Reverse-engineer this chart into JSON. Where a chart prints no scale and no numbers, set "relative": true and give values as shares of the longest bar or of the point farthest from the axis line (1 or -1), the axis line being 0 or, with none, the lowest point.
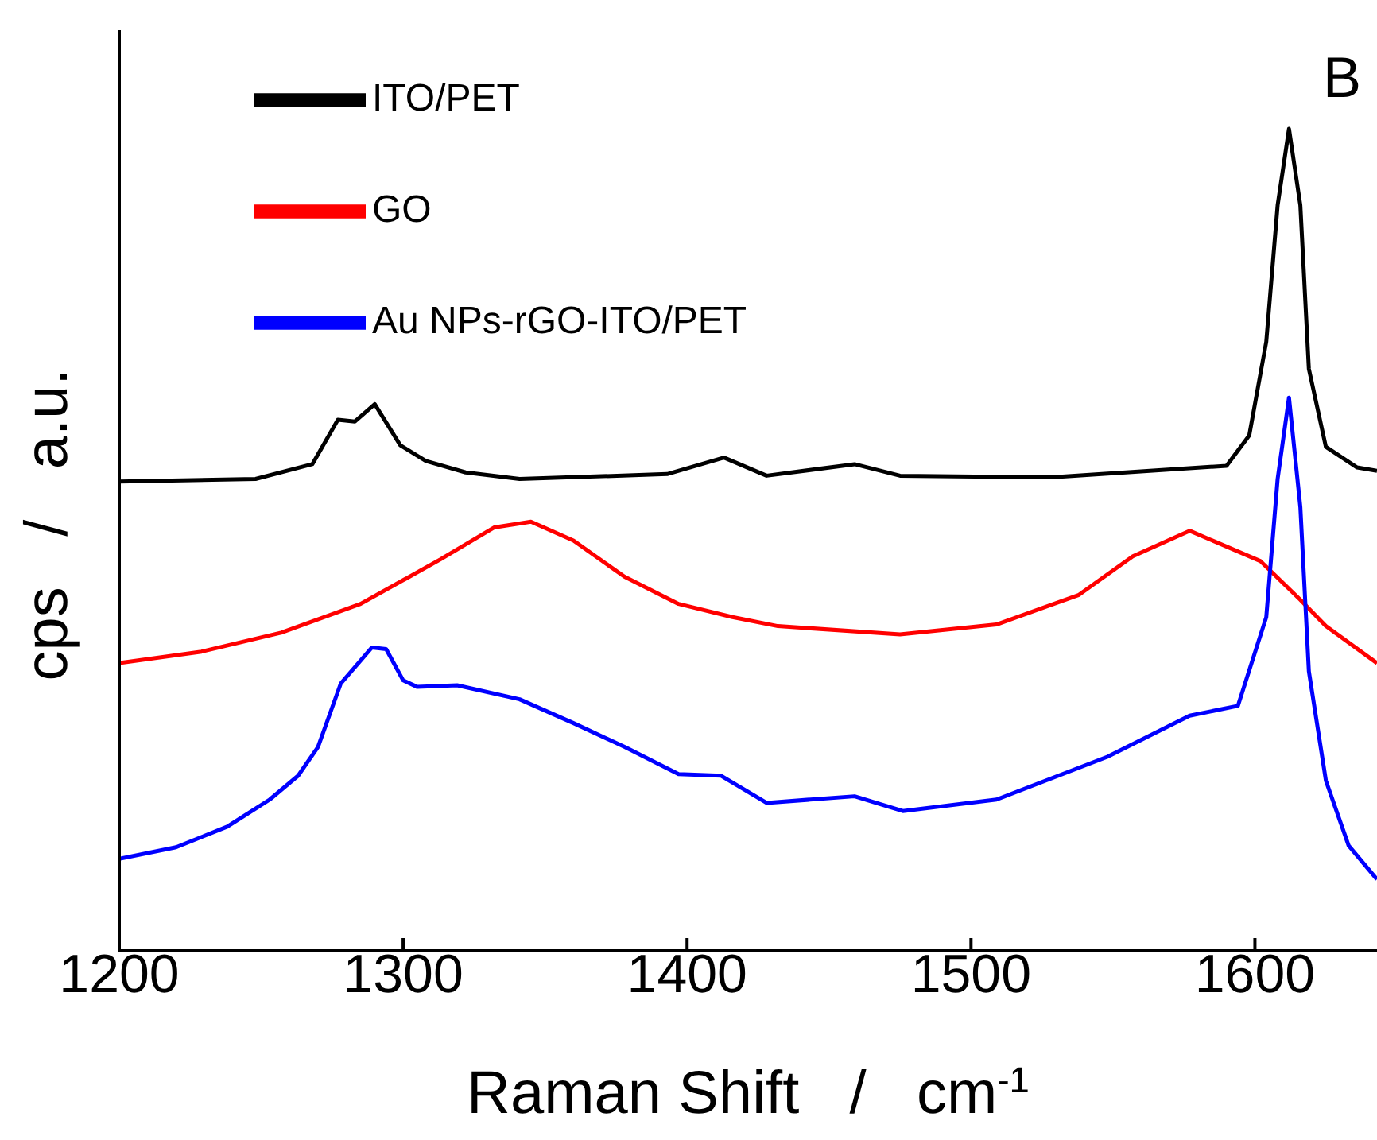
{
  "chart_data": {
    "type": "line",
    "relative": true,
    "xlabel": "Raman Shift   /   cm$^{-1}$",
    "ylabel": "cps   /   a.u.",
    "annotations": [
      "B"
    ],
    "xlim": [
      1200,
      1643
    ],
    "xticks": [
      1200,
      1300,
      1400,
      1500,
      1600
    ],
    "legend": "top left",
    "marker": "none",
    "line_style": "solid",
    "grid": false,
    "series": [
      {
        "name": "ITO/PET",
        "color": "#000000",
        "x": [
          1200,
          1248,
          1268,
          1277,
          1283,
          1290,
          1299,
          1308,
          1322,
          1341,
          1393,
          1413,
          1428,
          1459,
          1475,
          1528,
          1590,
          1598,
          1604,
          1608,
          1612,
          1616,
          1619,
          1625,
          1636,
          1643
        ],
        "values": [
          0.571,
          0.574,
          0.592,
          0.646,
          0.644,
          0.665,
          0.615,
          0.596,
          0.582,
          0.574,
          0.58,
          0.6,
          0.578,
          0.592,
          0.578,
          0.576,
          0.59,
          0.627,
          0.741,
          0.907,
          1.0,
          0.907,
          0.708,
          0.613,
          0.588,
          0.584
        ]
      },
      {
        "name": "GO",
        "color": "#ff0000",
        "x": [
          1200,
          1229,
          1257,
          1285,
          1313,
          1332,
          1345,
          1360,
          1378,
          1397,
          1416,
          1432,
          1475,
          1509,
          1538,
          1557,
          1577,
          1602,
          1616,
          1625,
          1643
        ],
        "values": [
          0.35,
          0.364,
          0.387,
          0.422,
          0.476,
          0.515,
          0.522,
          0.499,
          0.455,
          0.422,
          0.406,
          0.395,
          0.385,
          0.397,
          0.433,
          0.48,
          0.511,
          0.474,
          0.427,
          0.395,
          0.35
        ]
      },
      {
        "name": "Au NPs-rGO-ITO/PET",
        "color": "#0000ff",
        "x": [
          1200,
          1220,
          1238,
          1253,
          1263,
          1270,
          1278,
          1289,
          1294,
          1300,
          1305,
          1319,
          1341,
          1360,
          1378,
          1397,
          1412,
          1428,
          1459,
          1476,
          1509,
          1548,
          1577,
          1594,
          1604,
          1608,
          1612,
          1616,
          1619,
          1625,
          1633,
          1643
        ],
        "values": [
          0.112,
          0.126,
          0.151,
          0.184,
          0.213,
          0.248,
          0.325,
          0.369,
          0.367,
          0.329,
          0.321,
          0.323,
          0.306,
          0.277,
          0.248,
          0.215,
          0.213,
          0.18,
          0.188,
          0.17,
          0.184,
          0.236,
          0.286,
          0.298,
          0.406,
          0.574,
          0.673,
          0.54,
          0.34,
          0.207,
          0.128,
          0.087
        ]
      }
    ]
  }
}
